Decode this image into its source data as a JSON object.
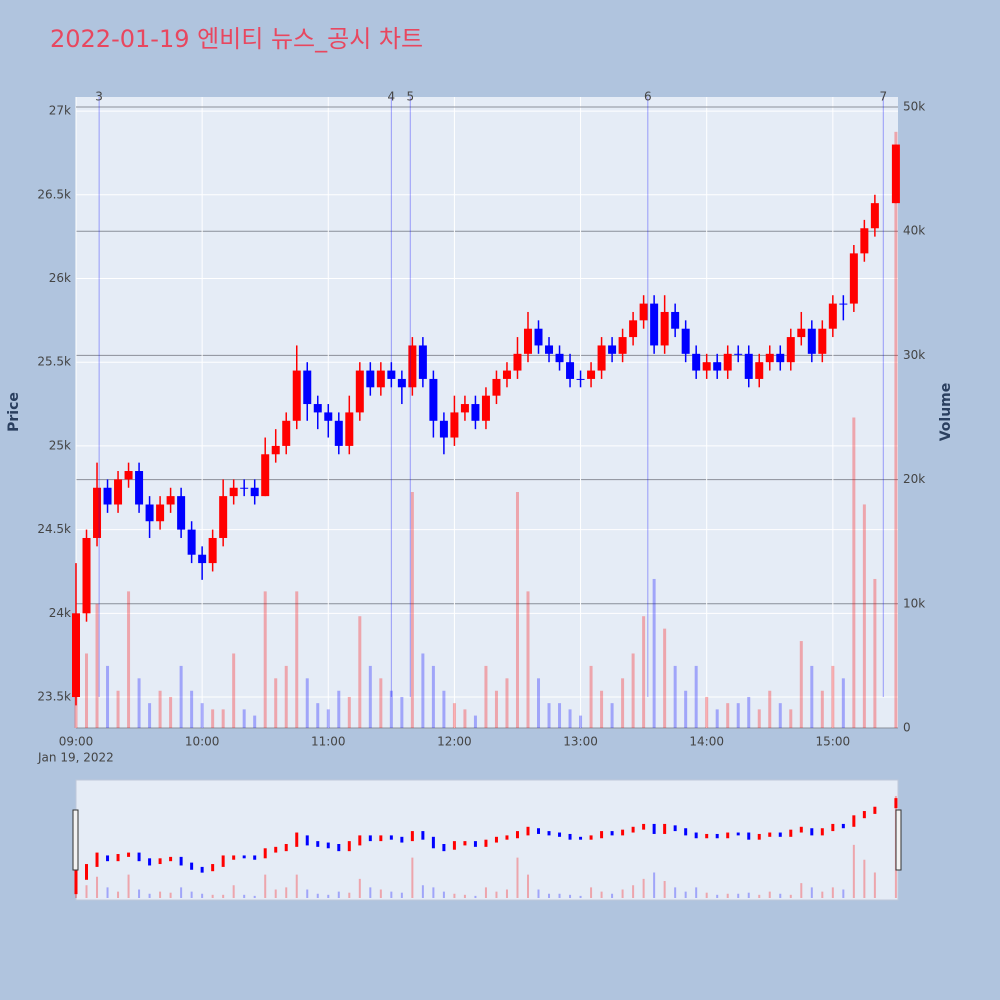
{
  "chart_data": {
    "type": "candlestick",
    "title": "2022-01-19 엔비티 뉴스_공시 차트",
    "xlabel_date": "Jan 19, 2022",
    "ylabel": "Price",
    "y2label": "Volume",
    "increasing_color": "#ff0000",
    "decreasing_color": "#0000ff",
    "x": [
      "09:00",
      "09:05",
      "09:10",
      "09:15",
      "09:20",
      "09:25",
      "09:30",
      "09:35",
      "09:40",
      "09:45",
      "09:50",
      "09:55",
      "10:00",
      "10:05",
      "10:10",
      "10:15",
      "10:20",
      "10:25",
      "10:30",
      "10:35",
      "10:40",
      "10:45",
      "10:50",
      "10:55",
      "11:00",
      "11:05",
      "11:10",
      "11:15",
      "11:20",
      "11:25",
      "11:30",
      "11:35",
      "11:40",
      "11:45",
      "11:50",
      "11:55",
      "12:00",
      "12:05",
      "12:10",
      "12:15",
      "12:20",
      "12:25",
      "12:30",
      "12:35",
      "12:40",
      "12:45",
      "12:50",
      "12:55",
      "13:00",
      "13:05",
      "13:10",
      "13:15",
      "13:20",
      "13:25",
      "13:30",
      "13:35",
      "13:40",
      "13:45",
      "13:50",
      "13:55",
      "14:00",
      "14:05",
      "14:10",
      "14:15",
      "14:20",
      "14:25",
      "14:30",
      "14:35",
      "14:40",
      "14:45",
      "14:50",
      "14:55",
      "15:00",
      "15:05",
      "15:10",
      "15:15",
      "15:20",
      "15:30"
    ],
    "open": [
      23500,
      24000,
      24450,
      24750,
      24650,
      24800,
      24850,
      24650,
      24550,
      24650,
      24700,
      24500,
      24350,
      24300,
      24450,
      24700,
      24750,
      24750,
      24700,
      24950,
      25000,
      25150,
      25450,
      25250,
      25200,
      25150,
      25000,
      25200,
      25450,
      25350,
      25450,
      25400,
      25350,
      25600,
      25400,
      25150,
      25050,
      25200,
      25250,
      25150,
      25300,
      25400,
      25450,
      25550,
      25700,
      25600,
      25550,
      25500,
      25400,
      25400,
      25450,
      25600,
      25550,
      25650,
      25750,
      25850,
      25600,
      25800,
      25700,
      25550,
      25450,
      25500,
      25450,
      25550,
      25550,
      25400,
      25500,
      25550,
      25500,
      25650,
      25700,
      25550,
      25700,
      25850,
      25850,
      26150,
      26300,
      26450
    ],
    "high": [
      24300,
      24500,
      24900,
      24800,
      24850,
      24900,
      24900,
      24700,
      24700,
      24750,
      24750,
      24550,
      24400,
      24500,
      24800,
      24800,
      24800,
      24800,
      25050,
      25100,
      25200,
      25600,
      25500,
      25300,
      25250,
      25200,
      25300,
      25500,
      25500,
      25500,
      25500,
      25450,
      25650,
      25650,
      25450,
      25200,
      25300,
      25300,
      25300,
      25350,
      25450,
      25500,
      25650,
      25800,
      25750,
      25650,
      25600,
      25550,
      25450,
      25500,
      25650,
      25650,
      25700,
      25800,
      25900,
      25900,
      25900,
      25850,
      25750,
      25600,
      25550,
      25550,
      25600,
      25600,
      25600,
      25550,
      25600,
      25600,
      25700,
      25800,
      25750,
      25750,
      25900,
      25900,
      26200,
      26350,
      26500,
      26800
    ],
    "low": [
      23450,
      23950,
      24400,
      24600,
      24600,
      24750,
      24600,
      24450,
      24500,
      24600,
      24450,
      24300,
      24200,
      24250,
      24400,
      24650,
      24700,
      24650,
      24700,
      24900,
      24950,
      25100,
      25150,
      25100,
      25050,
      24950,
      24950,
      25150,
      25300,
      25300,
      25350,
      25250,
      25300,
      25350,
      25050,
      24950,
      25000,
      25150,
      25100,
      25100,
      25250,
      25350,
      25400,
      25500,
      25550,
      25500,
      25450,
      25350,
      25350,
      25350,
      25400,
      25500,
      25500,
      25600,
      25700,
      25550,
      25550,
      25650,
      25500,
      25400,
      25400,
      25400,
      25400,
      25500,
      25350,
      25350,
      25450,
      25450,
      25450,
      25600,
      25500,
      25500,
      25650,
      25750,
      25800,
      26100,
      26250,
      26450
    ],
    "close": [
      24000,
      24450,
      24750,
      24650,
      24800,
      24850,
      24650,
      24550,
      24650,
      24700,
      24500,
      24350,
      24300,
      24450,
      24700,
      24750,
      24750,
      24700,
      24950,
      25000,
      25150,
      25450,
      25250,
      25200,
      25150,
      25000,
      25200,
      25450,
      25350,
      25450,
      25400,
      25350,
      25600,
      25400,
      25150,
      25050,
      25200,
      25250,
      25150,
      25300,
      25400,
      25450,
      25550,
      25700,
      25600,
      25550,
      25500,
      25400,
      25400,
      25450,
      25600,
      25550,
      25650,
      25750,
      25850,
      25600,
      25800,
      25700,
      25550,
      25450,
      25500,
      25450,
      25550,
      25550,
      25400,
      25500,
      25550,
      25500,
      25650,
      25700,
      25550,
      25700,
      25850,
      25850,
      26150,
      26300,
      26450,
      26800
    ],
    "volume": [
      9000,
      6000,
      10000,
      5000,
      3000,
      11000,
      4000,
      2000,
      3000,
      2500,
      5000,
      3000,
      2000,
      1500,
      1500,
      6000,
      1500,
      1000,
      11000,
      4000,
      5000,
      11000,
      4000,
      2000,
      1500,
      3000,
      2500,
      9000,
      5000,
      4000,
      3000,
      2500,
      19000,
      6000,
      5000,
      3000,
      2000,
      1500,
      1000,
      5000,
      3000,
      4000,
      19000,
      11000,
      4000,
      2000,
      2000,
      1500,
      1000,
      5000,
      3000,
      2000,
      4000,
      6000,
      9000,
      12000,
      8000,
      5000,
      3000,
      5000,
      2500,
      1500,
      2000,
      2000,
      2500,
      1500,
      3000,
      2000,
      1500,
      7000,
      5000,
      3000,
      5000,
      4000,
      25000,
      18000,
      12000,
      48000
    ],
    "xlim": [
      "09:00",
      "15:31"
    ],
    "xticks": [
      "09:00",
      "10:00",
      "11:00",
      "12:00",
      "13:00",
      "14:00",
      "15:00"
    ],
    "ylim": [
      23315,
      27084
    ],
    "yticks": [
      {
        "value": 23500,
        "label": "23.5k"
      },
      {
        "value": 24000,
        "label": "24k"
      },
      {
        "value": 24500,
        "label": "24.5k"
      },
      {
        "value": 25000,
        "label": "25k"
      },
      {
        "value": 25500,
        "label": "25.5k"
      },
      {
        "value": 26000,
        "label": "26k"
      },
      {
        "value": 26500,
        "label": "26.5k"
      },
      {
        "value": 27000,
        "label": "27k"
      }
    ],
    "y2lim": [
      0,
      50805
    ],
    "y2ticks": [
      0,
      {
        "value": 10000,
        "label": "10k"
      },
      {
        "value": 20000,
        "label": "20k"
      },
      {
        "value": 30000,
        "label": "30k"
      },
      {
        "value": 40000,
        "label": "40k"
      },
      {
        "value": 50000,
        "label": "50k"
      }
    ],
    "annotations": [
      {
        "x": "09:11",
        "label": "3"
      },
      {
        "x": "11:30",
        "label": "4"
      },
      {
        "x": "11:39",
        "label": "5"
      },
      {
        "x": "13:32",
        "label": "6"
      },
      {
        "x": "15:24",
        "label": "7"
      }
    ]
  }
}
